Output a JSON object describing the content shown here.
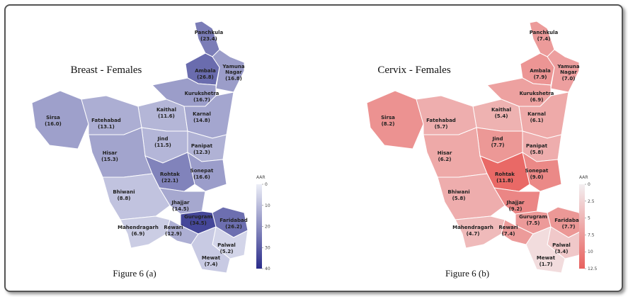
{
  "maps": [
    {
      "title": "Breast - Females",
      "caption": "Figure 6 (a)",
      "colors": [
        "#eceef7",
        "#2a2c8a"
      ],
      "legend": {
        "title": "AAR",
        "lim": [
          0,
          40
        ],
        "ticks": [
          0,
          10,
          20,
          30,
          40
        ]
      },
      "districts": [
        {
          "name": "Panchkula",
          "value": 23.4,
          "value_label": "(23.4)"
        },
        {
          "name": "Ambala",
          "value": 26.8,
          "value_label": "(26.8)"
        },
        {
          "name": "Yamuna Nagar",
          "value": 16.8,
          "value_label": "(16.8)"
        },
        {
          "name": "Kurukshetra",
          "value": 16.7,
          "value_label": "(16.7)"
        },
        {
          "name": "Kaithal",
          "value": 11.6,
          "value_label": "(11.6)"
        },
        {
          "name": "Karnal",
          "value": 14.8,
          "value_label": "(14.8)"
        },
        {
          "name": "Sirsa",
          "value": 16.0,
          "value_label": "(16.0)"
        },
        {
          "name": "Fatehabad",
          "value": 13.1,
          "value_label": "(13.1)"
        },
        {
          "name": "Jind",
          "value": 11.5,
          "value_label": "(11.5)"
        },
        {
          "name": "Panipat",
          "value": 12.3,
          "value_label": "(12.3)"
        },
        {
          "name": "Hisar",
          "value": 15.3,
          "value_label": "(15.3)"
        },
        {
          "name": "Sonepat",
          "value": 16.6,
          "value_label": "(16.6)"
        },
        {
          "name": "Rohtak",
          "value": 22.1,
          "value_label": "(22.1)"
        },
        {
          "name": "Bhiwani",
          "value": 8.8,
          "value_label": "(8.8)"
        },
        {
          "name": "Jhajjar",
          "value": 14.5,
          "value_label": "(14.5)"
        },
        {
          "name": "Gurugram",
          "value": 34.5,
          "value_label": "(34.5)"
        },
        {
          "name": "Faridabad",
          "value": 26.2,
          "value_label": "(26.2)"
        },
        {
          "name": "Mahendragarh",
          "value": 6.9,
          "value_label": "(6.9)"
        },
        {
          "name": "Rewari",
          "value": 12.9,
          "value_label": "(12.9)"
        },
        {
          "name": "Palwal",
          "value": 5.2,
          "value_label": "(5.2)"
        },
        {
          "name": "Mewat",
          "value": 7.4,
          "value_label": "(7.4)"
        }
      ]
    },
    {
      "title": "Cervix - Females",
      "caption": "Figure 6 (b)",
      "colors": [
        "#f3eff1",
        "#e8615e"
      ],
      "legend": {
        "title": "AAR",
        "lim": [
          0,
          12.5
        ],
        "ticks": [
          0,
          2.5,
          5,
          7.5,
          10,
          12.5
        ]
      },
      "districts": [
        {
          "name": "Panchkula",
          "value": 7.4,
          "value_label": "(7.4)"
        },
        {
          "name": "Ambala",
          "value": 7.9,
          "value_label": "(7.9)"
        },
        {
          "name": "Yamuna Nagar",
          "value": 7.0,
          "value_label": "(7.0)"
        },
        {
          "name": "Kurukshetra",
          "value": 6.9,
          "value_label": "(6.9)"
        },
        {
          "name": "Kaithal",
          "value": 5.4,
          "value_label": "(5.4)"
        },
        {
          "name": "Karnal",
          "value": 6.1,
          "value_label": "(6.1)"
        },
        {
          "name": "Sirsa",
          "value": 8.2,
          "value_label": "(8.2)"
        },
        {
          "name": "Fatehabad",
          "value": 5.7,
          "value_label": "(5.7)"
        },
        {
          "name": "Jind",
          "value": 7.7,
          "value_label": "(7.7)"
        },
        {
          "name": "Panipat",
          "value": 5.8,
          "value_label": "(5.8)"
        },
        {
          "name": "Hisar",
          "value": 6.2,
          "value_label": "(6.2)"
        },
        {
          "name": "Sonepat",
          "value": 9.0,
          "value_label": "(9.0)"
        },
        {
          "name": "Rohtak",
          "value": 11.8,
          "value_label": "(11.8)"
        },
        {
          "name": "Bhiwani",
          "value": 5.8,
          "value_label": "(5.8)"
        },
        {
          "name": "Jhajjar",
          "value": 9.2,
          "value_label": "(9.2)"
        },
        {
          "name": "Gurugram",
          "value": 7.5,
          "value_label": "(7.5)"
        },
        {
          "name": "Faridabad",
          "value": 7.7,
          "value_label": "(7.7)"
        },
        {
          "name": "Mahendragarh",
          "value": 4.7,
          "value_label": "(4.7)"
        },
        {
          "name": "Rewari",
          "value": 7.4,
          "value_label": "(7.4)"
        },
        {
          "name": "Palwal",
          "value": 3.4,
          "value_label": "(3.4)"
        },
        {
          "name": "Mewat",
          "value": 1.7,
          "value_label": "(1.7)"
        }
      ]
    }
  ]
}
